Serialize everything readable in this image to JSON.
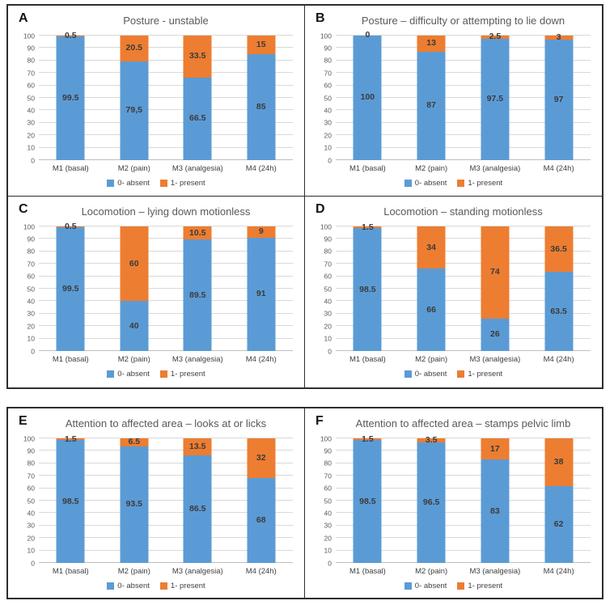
{
  "figure": {
    "panels": [
      "A",
      "B",
      "C",
      "D",
      "E",
      "F"
    ],
    "colors": {
      "absent": "#5B9BD5",
      "present": "#ED7D31",
      "gridline": "#D9D9D9",
      "axis_line": "#BFBFBF",
      "border": "#2E2E2E",
      "title_text": "#595959",
      "tick_text": "#595959",
      "data_label_text": "#3B3B3B"
    }
  },
  "chart_data": [
    {
      "type": "bar",
      "stacked": true,
      "panel": "A",
      "title": "Posture - unstable",
      "categories": [
        "M1 (basal)",
        "M2 (pain)",
        "M3 (analgesia)",
        "M4 (24h)"
      ],
      "series": [
        {
          "name": "0- absent",
          "color": "#5B9BD5",
          "values": [
            99.5,
            79.5,
            66.5,
            85
          ],
          "labels": [
            "99.5",
            "79,5",
            "66.5",
            "85"
          ]
        },
        {
          "name": "1- present",
          "color": "#ED7D31",
          "values": [
            0.5,
            20.5,
            33.5,
            15
          ],
          "labels": [
            "0.5",
            "20.5",
            "33.5",
            "15"
          ]
        }
      ],
      "ylim": [
        0,
        100
      ],
      "yticks": [
        0,
        10,
        20,
        30,
        40,
        50,
        60,
        70,
        80,
        90,
        100
      ],
      "grid": true,
      "legend_position": "bottom"
    },
    {
      "type": "bar",
      "stacked": true,
      "panel": "B",
      "title": "Posture – difficulty or attempting to lie down",
      "categories": [
        "M1 (basal)",
        "M2 (pain)",
        "M3 (analgesia)",
        "M4 (24h)"
      ],
      "series": [
        {
          "name": "0- absent",
          "color": "#5B9BD5",
          "values": [
            100,
            87,
            97.5,
            97
          ],
          "labels": [
            "100",
            "87",
            "97.5",
            "97"
          ]
        },
        {
          "name": "1- present",
          "color": "#ED7D31",
          "values": [
            0,
            13,
            2.5,
            3
          ],
          "labels": [
            "0",
            "13",
            "2.5",
            "3"
          ]
        }
      ],
      "ylim": [
        0,
        100
      ],
      "yticks": [
        0,
        10,
        20,
        30,
        40,
        50,
        60,
        70,
        80,
        90,
        100
      ],
      "grid": true,
      "legend_position": "bottom"
    },
    {
      "type": "bar",
      "stacked": true,
      "panel": "C",
      "title": "Locomotion – lying down motionless",
      "categories": [
        "M1 (basal)",
        "M2 (pain)",
        "M3 (analgesia)",
        "M4 (24h)"
      ],
      "series": [
        {
          "name": "0- absent",
          "color": "#5B9BD5",
          "values": [
            99.5,
            40,
            89.5,
            91
          ],
          "labels": [
            "99.5",
            "40",
            "89.5",
            "91"
          ]
        },
        {
          "name": "1- present",
          "color": "#ED7D31",
          "values": [
            0.5,
            60,
            10.5,
            9
          ],
          "labels": [
            "0.5",
            "60",
            "10.5",
            "9"
          ]
        }
      ],
      "ylim": [
        0,
        100
      ],
      "yticks": [
        0,
        10,
        20,
        30,
        40,
        50,
        60,
        70,
        80,
        90,
        100
      ],
      "grid": true,
      "legend_position": "bottom"
    },
    {
      "type": "bar",
      "stacked": true,
      "panel": "D",
      "title": "Locomotion – standing motionless",
      "categories": [
        "M1 (basal)",
        "M2 (pain)",
        "M3 (analgesia)",
        "M4 (24h)"
      ],
      "series": [
        {
          "name": "0- absent",
          "color": "#5B9BD5",
          "values": [
            98.5,
            66,
            26,
            63.5
          ],
          "labels": [
            "98.5",
            "66",
            "26",
            "63.5"
          ]
        },
        {
          "name": "1- present",
          "color": "#ED7D31",
          "values": [
            1.5,
            34,
            74,
            36.5
          ],
          "labels": [
            "1.5",
            "34",
            "74",
            "36.5"
          ]
        }
      ],
      "ylim": [
        0,
        100
      ],
      "yticks": [
        0,
        10,
        20,
        30,
        40,
        50,
        60,
        70,
        80,
        90,
        100
      ],
      "grid": true,
      "legend_position": "bottom"
    },
    {
      "type": "bar",
      "stacked": true,
      "panel": "E",
      "title": "Attention to affected area – looks at or licks",
      "categories": [
        "M1 (basal)",
        "M2 (pain)",
        "M3 (analgesia)",
        "M4 (24h)"
      ],
      "series": [
        {
          "name": "0- absent",
          "color": "#5B9BD5",
          "values": [
            98.5,
            93.5,
            86.5,
            68
          ],
          "labels": [
            "98.5",
            "93.5",
            "86.5",
            "68"
          ]
        },
        {
          "name": "1- present",
          "color": "#ED7D31",
          "values": [
            1.5,
            6.5,
            13.5,
            32
          ],
          "labels": [
            "1.5",
            "6.5",
            "13.5",
            "32"
          ]
        }
      ],
      "ylim": [
        0,
        100
      ],
      "yticks": [
        0,
        10,
        20,
        30,
        40,
        50,
        60,
        70,
        80,
        90,
        100
      ],
      "grid": true,
      "legend_position": "bottom"
    },
    {
      "type": "bar",
      "stacked": true,
      "panel": "F",
      "title": "Attention to affected area – stamps pelvic limb",
      "categories": [
        "M1 (basal)",
        "M2 (pain)",
        "M3 (analgesia)",
        "M4 (24h)"
      ],
      "series": [
        {
          "name": "0- absent",
          "color": "#5B9BD5",
          "values": [
            98.5,
            96.5,
            83,
            62
          ],
          "labels": [
            "98.5",
            "96.5",
            "83",
            "62"
          ]
        },
        {
          "name": "1- present",
          "color": "#ED7D31",
          "values": [
            1.5,
            3.5,
            17,
            38
          ],
          "labels": [
            "1.5",
            "3.5",
            "17",
            "38"
          ]
        }
      ],
      "ylim": [
        0,
        100
      ],
      "yticks": [
        0,
        10,
        20,
        30,
        40,
        50,
        60,
        70,
        80,
        90,
        100
      ],
      "grid": true,
      "legend_position": "bottom"
    }
  ]
}
